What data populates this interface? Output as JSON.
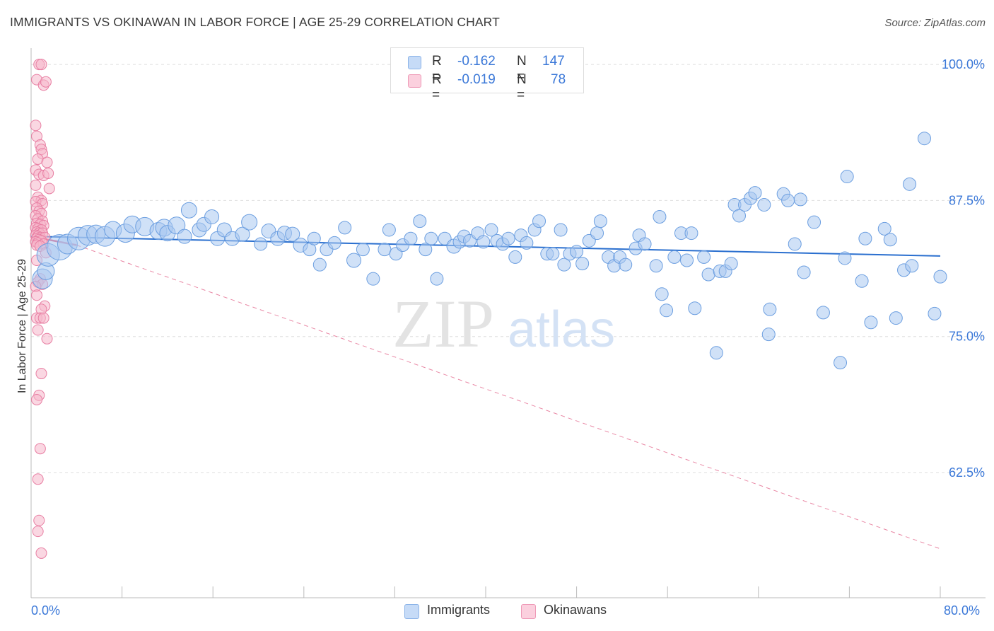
{
  "title": "IMMIGRANTS VS OKINAWAN IN LABOR FORCE | AGE 25-29 CORRELATION CHART",
  "source": "Source: ZipAtlas.com",
  "watermark": {
    "zip": "ZIP",
    "atlas": "atlas"
  },
  "legend": {
    "rows": [
      {
        "r_label": "R =",
        "r_value": "-0.162",
        "n_label": "N =",
        "n_value": "147"
      },
      {
        "r_label": "R =",
        "r_value": "-0.019",
        "n_label": "N =",
        "n_value": "78"
      }
    ]
  },
  "bottom_legend": {
    "immigrants": "Immigrants",
    "okinawans": "Okinawans"
  },
  "colors": {
    "blue_fill": "#a9c8f0",
    "blue_stroke": "#6b9ee0",
    "blue_line": "#2a6fcf",
    "pink_fill": "#f5b7cb",
    "pink_stroke": "#e87fa3",
    "pink_line": "#e0557f",
    "axis_text": "#3b78d8"
  },
  "chart_data": {
    "type": "scatter",
    "title": "IMMIGRANTS VS OKINAWAN IN LABOR FORCE | AGE 25-29 CORRELATION CHART",
    "xlabel": "",
    "ylabel": "In Labor Force | Age 25-29",
    "xlim": [
      0,
      80
    ],
    "ylim": [
      51,
      101.5
    ],
    "x_tick_labels": [
      "0.0%",
      "80.0%"
    ],
    "y_ticks": [
      62.5,
      75.0,
      87.5,
      100.0
    ],
    "y_tick_labels": [
      "62.5%",
      "75.0%",
      "87.5%",
      "100.0%"
    ],
    "grid": true,
    "legend_position": "top-center",
    "series": [
      {
        "name": "Immigrants",
        "R": -0.162,
        "N": 147,
        "trend": {
          "x": [
            0,
            80
          ],
          "y": [
            84.2,
            82.4
          ]
        },
        "points": [
          [
            1.0,
            80.3,
            14
          ],
          [
            1.3,
            81.0,
            12
          ],
          [
            1.5,
            82.5,
            16
          ],
          [
            2.5,
            83.2,
            18
          ],
          [
            3.2,
            83.5,
            14
          ],
          [
            4.2,
            84.0,
            16
          ],
          [
            5.0,
            84.3,
            14
          ],
          [
            5.7,
            84.4,
            13
          ],
          [
            6.5,
            84.2,
            14
          ],
          [
            7.2,
            84.8,
            12
          ],
          [
            8.3,
            84.5,
            13
          ],
          [
            8.9,
            85.3,
            12
          ],
          [
            10.0,
            85.1,
            13
          ],
          [
            11.2,
            84.7,
            12
          ],
          [
            11.7,
            85.0,
            12
          ],
          [
            12.0,
            84.5,
            11
          ],
          [
            12.8,
            85.2,
            12
          ],
          [
            13.5,
            84.2,
            10
          ],
          [
            13.9,
            86.6,
            11
          ],
          [
            14.8,
            84.8,
            10
          ],
          [
            15.2,
            85.3,
            10
          ],
          [
            15.9,
            86.0,
            10
          ],
          [
            16.4,
            84.0,
            10
          ],
          [
            17.0,
            84.8,
            10
          ],
          [
            17.7,
            84.0,
            10
          ],
          [
            18.6,
            84.4,
            10
          ],
          [
            19.2,
            85.5,
            11
          ],
          [
            20.2,
            83.5,
            9
          ],
          [
            20.9,
            84.7,
            10
          ],
          [
            21.7,
            84.0,
            10
          ],
          [
            22.3,
            84.5,
            10
          ],
          [
            23.0,
            84.4,
            10
          ],
          [
            23.7,
            83.4,
            10
          ],
          [
            24.5,
            83.0,
            9
          ],
          [
            24.9,
            84.0,
            9
          ],
          [
            25.4,
            81.6,
            9
          ],
          [
            26.0,
            83.0,
            9
          ],
          [
            26.7,
            83.6,
            9
          ],
          [
            27.6,
            85.0,
            9
          ],
          [
            28.4,
            82.0,
            10
          ],
          [
            29.2,
            83.0,
            9
          ],
          [
            30.1,
            80.3,
            9
          ],
          [
            31.1,
            83.0,
            9
          ],
          [
            31.5,
            84.8,
            9
          ],
          [
            32.1,
            82.6,
            9
          ],
          [
            32.7,
            83.4,
            9
          ],
          [
            33.4,
            84.0,
            9
          ],
          [
            34.2,
            85.6,
            9
          ],
          [
            34.7,
            83.0,
            9
          ],
          [
            35.2,
            84.0,
            9
          ],
          [
            35.7,
            80.3,
            9
          ],
          [
            36.4,
            84.0,
            9
          ],
          [
            37.2,
            83.3,
            10
          ],
          [
            37.7,
            83.7,
            9
          ],
          [
            38.1,
            84.2,
            9
          ],
          [
            38.6,
            83.8,
            9
          ],
          [
            39.3,
            84.5,
            9
          ],
          [
            39.8,
            83.7,
            9
          ],
          [
            40.5,
            84.8,
            9
          ],
          [
            41.0,
            83.8,
            9
          ],
          [
            41.5,
            83.5,
            9
          ],
          [
            42.0,
            84.0,
            9
          ],
          [
            42.6,
            82.3,
            9
          ],
          [
            43.1,
            84.3,
            9
          ],
          [
            43.6,
            83.6,
            9
          ],
          [
            44.3,
            84.8,
            9
          ],
          [
            44.7,
            85.6,
            9
          ],
          [
            45.4,
            82.6,
            9
          ],
          [
            45.9,
            82.6,
            9
          ],
          [
            46.6,
            84.8,
            9
          ],
          [
            46.9,
            81.6,
            9
          ],
          [
            47.4,
            82.6,
            9
          ],
          [
            48.0,
            82.8,
            9
          ],
          [
            48.5,
            81.7,
            9
          ],
          [
            49.1,
            83.8,
            9
          ],
          [
            49.8,
            84.5,
            9
          ],
          [
            50.1,
            85.6,
            9
          ],
          [
            50.8,
            82.3,
            9
          ],
          [
            51.3,
            81.5,
            9
          ],
          [
            51.8,
            82.3,
            9
          ],
          [
            52.3,
            81.6,
            9
          ],
          [
            53.2,
            83.1,
            9
          ],
          [
            53.5,
            84.3,
            9
          ],
          [
            54.0,
            83.5,
            9
          ],
          [
            55.0,
            81.5,
            9
          ],
          [
            55.3,
            86.0,
            9
          ],
          [
            55.5,
            78.9,
            9
          ],
          [
            55.9,
            77.4,
            9
          ],
          [
            56.6,
            82.3,
            9
          ],
          [
            57.2,
            84.5,
            9
          ],
          [
            57.7,
            82.0,
            9
          ],
          [
            58.1,
            84.5,
            9
          ],
          [
            58.4,
            77.6,
            9
          ],
          [
            59.2,
            82.3,
            9
          ],
          [
            59.6,
            80.7,
            9
          ],
          [
            60.3,
            73.5,
            9
          ],
          [
            60.6,
            81.0,
            9
          ],
          [
            61.1,
            81.0,
            9
          ],
          [
            61.6,
            81.7,
            9
          ],
          [
            61.9,
            87.1,
            9
          ],
          [
            62.3,
            86.1,
            9
          ],
          [
            62.8,
            87.1,
            9
          ],
          [
            63.3,
            87.7,
            9
          ],
          [
            63.7,
            88.2,
            9
          ],
          [
            64.5,
            87.1,
            9
          ],
          [
            65.0,
            77.5,
            9
          ],
          [
            64.9,
            75.2,
            9
          ],
          [
            66.2,
            88.1,
            9
          ],
          [
            66.6,
            87.5,
            9
          ],
          [
            67.2,
            83.5,
            9
          ],
          [
            67.7,
            87.6,
            9
          ],
          [
            68.0,
            80.9,
            9
          ],
          [
            68.9,
            85.5,
            9
          ],
          [
            69.7,
            77.2,
            9
          ],
          [
            71.2,
            72.6,
            9
          ],
          [
            71.6,
            82.2,
            9
          ],
          [
            71.8,
            89.7,
            9
          ],
          [
            73.1,
            80.1,
            9
          ],
          [
            73.4,
            84.0,
            9
          ],
          [
            73.9,
            76.3,
            9
          ],
          [
            75.1,
            84.9,
            9
          ],
          [
            75.6,
            83.9,
            9
          ],
          [
            76.1,
            76.7,
            9
          ],
          [
            76.8,
            81.1,
            9
          ],
          [
            77.5,
            81.5,
            9
          ],
          [
            77.3,
            89.0,
            9
          ],
          [
            78.6,
            93.2,
            9
          ],
          [
            79.5,
            77.1,
            9
          ],
          [
            80.0,
            80.5,
            9
          ]
        ]
      },
      {
        "name": "Okinawans",
        "R": -0.019,
        "N": 78,
        "trend_solid": {
          "x": [
            0,
            4
          ],
          "y": [
            84.2,
            83.4
          ]
        },
        "trend_dashed": {
          "x": [
            4,
            80
          ],
          "y": [
            83.4,
            55.5
          ]
        },
        "points": [
          [
            0.5,
            98.6
          ],
          [
            0.7,
            100.0
          ],
          [
            0.9,
            100.0
          ],
          [
            1.1,
            98.1
          ],
          [
            1.3,
            98.4
          ],
          [
            0.4,
            94.4
          ],
          [
            0.5,
            93.4
          ],
          [
            0.8,
            92.6
          ],
          [
            0.9,
            92.2
          ],
          [
            1.0,
            91.8
          ],
          [
            0.6,
            91.3
          ],
          [
            0.4,
            90.3
          ],
          [
            1.4,
            91.0
          ],
          [
            0.7,
            89.9
          ],
          [
            1.1,
            89.8
          ],
          [
            1.5,
            90.0
          ],
          [
            0.4,
            88.9
          ],
          [
            1.6,
            88.6
          ],
          [
            0.6,
            87.8
          ],
          [
            0.9,
            87.5
          ],
          [
            0.4,
            87.4
          ],
          [
            1.0,
            87.2
          ],
          [
            0.5,
            86.8
          ],
          [
            0.7,
            86.5
          ],
          [
            0.9,
            86.3
          ],
          [
            0.4,
            86.1
          ],
          [
            0.6,
            85.8
          ],
          [
            1.0,
            85.6
          ],
          [
            0.5,
            85.4
          ],
          [
            0.8,
            85.3
          ],
          [
            1.1,
            85.2
          ],
          [
            0.4,
            85.0
          ],
          [
            0.6,
            84.9
          ],
          [
            0.9,
            84.8
          ],
          [
            0.5,
            84.6
          ],
          [
            0.7,
            84.5
          ],
          [
            1.0,
            84.5
          ],
          [
            0.4,
            84.3
          ],
          [
            0.6,
            84.2
          ],
          [
            0.8,
            84.1
          ],
          [
            1.2,
            84.1
          ],
          [
            0.5,
            84.0
          ],
          [
            0.7,
            83.9
          ],
          [
            0.9,
            83.8
          ],
          [
            0.4,
            83.7
          ],
          [
            0.6,
            83.6
          ],
          [
            1.1,
            83.5
          ],
          [
            0.5,
            83.4
          ],
          [
            0.8,
            83.3
          ],
          [
            1.3,
            82.7
          ],
          [
            0.5,
            82.0
          ],
          [
            0.8,
            80.3
          ],
          [
            0.6,
            80.0
          ],
          [
            1.0,
            79.8
          ],
          [
            0.4,
            79.6
          ],
          [
            0.5,
            78.8
          ],
          [
            1.2,
            77.8
          ],
          [
            0.9,
            77.5
          ],
          [
            0.5,
            76.7
          ],
          [
            0.8,
            76.7
          ],
          [
            1.1,
            76.7
          ],
          [
            0.6,
            75.6
          ],
          [
            1.4,
            74.8
          ],
          [
            0.9,
            71.6
          ],
          [
            0.7,
            69.6
          ],
          [
            0.5,
            69.2
          ],
          [
            0.8,
            64.7
          ],
          [
            0.6,
            61.9
          ],
          [
            0.7,
            58.1
          ],
          [
            0.6,
            57.1
          ],
          [
            0.9,
            55.1
          ]
        ]
      }
    ]
  }
}
